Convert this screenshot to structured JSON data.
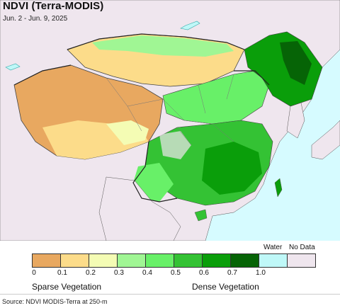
{
  "map": {
    "title": "NDVI (Terra-MODIS)",
    "subtitle": "Jun. 2 - Jun. 9, 2025"
  },
  "legend": {
    "colors": [
      "#e8a860",
      "#fcdc8a",
      "#f4fcb4",
      "#a0f694",
      "#68f068",
      "#34c234",
      "#0a9e0a",
      "#066406",
      "#bff8f8",
      "#efe6ee"
    ],
    "ticks": [
      "0",
      "0.1",
      "0.2",
      "0.3",
      "0.4",
      "0.5",
      "0.6",
      "0.7",
      "1.0"
    ],
    "water_label": "Water",
    "no_data_label": "No Data",
    "sparse_label": "Sparse Vegetation",
    "dense_label": "Dense Vegetation"
  },
  "source": "Source: NDVI MODIS-Terra at 250-m"
}
